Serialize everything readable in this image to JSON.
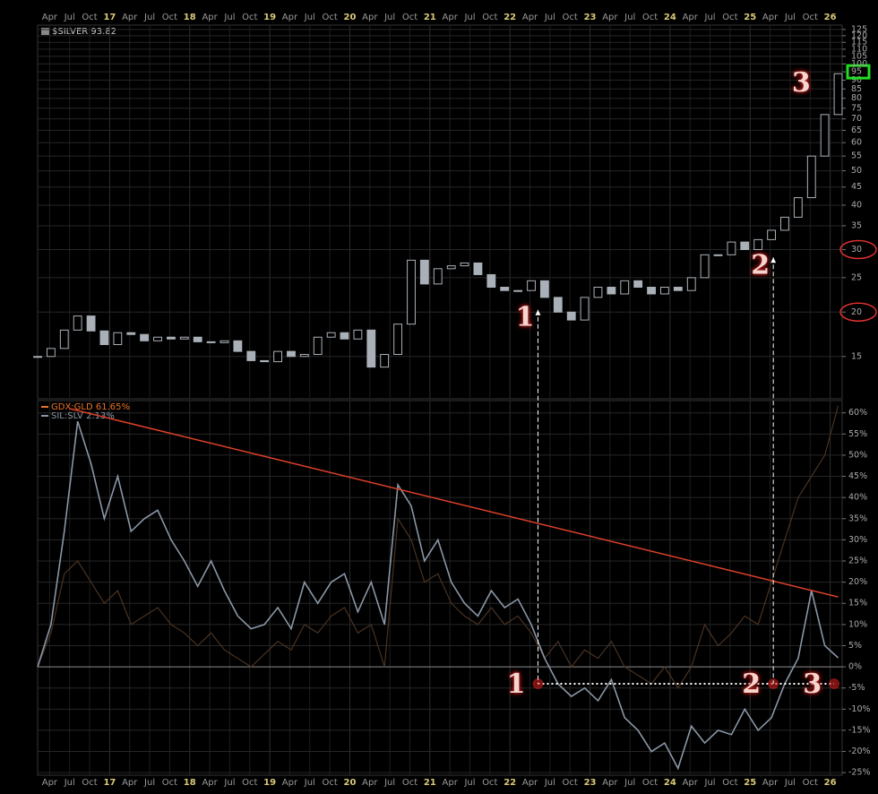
{
  "chart_data": [
    {
      "type": "candlestick",
      "title": "$SILVER 93.82",
      "color": "#a9b0b8",
      "log_scale": true,
      "grid": true,
      "x": [
        2016.1,
        2016.267,
        2016.433,
        2016.6,
        2016.767,
        2016.933,
        2017.1,
        2017.267,
        2017.433,
        2017.6,
        2017.767,
        2017.933,
        2018.1,
        2018.267,
        2018.433,
        2018.6,
        2018.767,
        2018.933,
        2019.1,
        2019.267,
        2019.433,
        2019.6,
        2019.767,
        2019.933,
        2020.1,
        2020.267,
        2020.433,
        2020.6,
        2020.767,
        2020.933,
        2021.1,
        2021.267,
        2021.433,
        2021.6,
        2021.767,
        2021.933,
        2022.1,
        2022.267,
        2022.433,
        2022.6,
        2022.767,
        2022.933,
        2023.1,
        2023.267,
        2023.433,
        2023.6,
        2023.767,
        2023.933,
        2024.1,
        2024.267,
        2024.433,
        2024.6,
        2024.767,
        2024.933,
        2025.1,
        2025.267,
        2025.433,
        2025.6,
        2025.767,
        2025.933,
        2026.1
      ],
      "values": [
        15.0,
        15.8,
        17.8,
        19.5,
        17.7,
        16.2,
        17.5,
        17.3,
        16.6,
        17.0,
        16.8,
        17.0,
        16.5,
        16.4,
        16.6,
        15.5,
        14.6,
        14.5,
        15.5,
        15.0,
        15.2,
        17.0,
        17.5,
        16.8,
        17.8,
        14.0,
        15.2,
        18.5,
        28.0,
        24.0,
        26.5,
        27.0,
        27.5,
        25.5,
        23.5,
        23.0,
        23.0,
        24.5,
        22.0,
        20.0,
        19.0,
        22.0,
        23.5,
        22.5,
        24.5,
        23.5,
        22.5,
        23.5,
        23.0,
        25.0,
        29.0,
        29.0,
        31.5,
        30.0,
        32.0,
        34.0,
        37.0,
        42.0,
        55.0,
        72.0,
        93.82
      ],
      "xlim": [
        2016.1,
        2026.15
      ],
      "xticks": [
        {
          "value": 2016.25,
          "label": "Apr"
        },
        {
          "value": 2016.5,
          "label": "Jul"
        },
        {
          "value": 2016.75,
          "label": "Oct"
        },
        {
          "value": 2017,
          "label": "17"
        },
        {
          "value": 2017.25,
          "label": "Apr"
        },
        {
          "value": 2017.5,
          "label": "Jul"
        },
        {
          "value": 2017.75,
          "label": "Oct"
        },
        {
          "value": 2018,
          "label": "18"
        },
        {
          "value": 2018.25,
          "label": "Apr"
        },
        {
          "value": 2018.5,
          "label": "Jul"
        },
        {
          "value": 2018.75,
          "label": "Oct"
        },
        {
          "value": 2019,
          "label": "19"
        },
        {
          "value": 2019.25,
          "label": "Apr"
        },
        {
          "value": 2019.5,
          "label": "Jul"
        },
        {
          "value": 2019.75,
          "label": "Oct"
        },
        {
          "value": 2020,
          "label": "20"
        },
        {
          "value": 2020.25,
          "label": "Apr"
        },
        {
          "value": 2020.5,
          "label": "Jul"
        },
        {
          "value": 2020.75,
          "label": "Oct"
        },
        {
          "value": 2021,
          "label": "21"
        },
        {
          "value": 2021.25,
          "label": "Apr"
        },
        {
          "value": 2021.5,
          "label": "Jul"
        },
        {
          "value": 2021.75,
          "label": "Oct"
        },
        {
          "value": 2022,
          "label": "22"
        },
        {
          "value": 2022.25,
          "label": "Apr"
        },
        {
          "value": 2022.5,
          "label": "Jul"
        },
        {
          "value": 2022.75,
          "label": "Oct"
        },
        {
          "value": 2023,
          "label": "23"
        },
        {
          "value": 2023.25,
          "label": "Apr"
        },
        {
          "value": 2023.5,
          "label": "Jul"
        },
        {
          "value": 2023.75,
          "label": "Oct"
        },
        {
          "value": 2024,
          "label": "24"
        },
        {
          "value": 2024.25,
          "label": "Apr"
        },
        {
          "value": 2024.5,
          "label": "Jul"
        },
        {
          "value": 2024.75,
          "label": "Oct"
        },
        {
          "value": 2025,
          "label": "25"
        },
        {
          "value": 2025.25,
          "label": "Apr"
        },
        {
          "value": 2025.5,
          "label": "Jul"
        },
        {
          "value": 2025.75,
          "label": "Oct"
        },
        {
          "value": 2026,
          "label": "26"
        }
      ],
      "ylim": [
        11.4,
        128.6
      ],
      "yticks": [
        15,
        20,
        25,
        30,
        35,
        40,
        45,
        50,
        55,
        60,
        65,
        70,
        75,
        80,
        85,
        90,
        95,
        100,
        105,
        110,
        115,
        120,
        125
      ],
      "highlight_tick": 95,
      "highlight_color": "#22dd22",
      "circled_ticks": [
        30,
        20
      ],
      "circle_color": "#e03030",
      "annotations": [
        {
          "label": "1",
          "x": 2022.35,
          "y": 20.3
        },
        {
          "label": "2",
          "x": 2025.29,
          "y": 28.5
        },
        {
          "label": "3",
          "x": 2025.8,
          "y": 93
        }
      ]
    },
    {
      "type": "line",
      "grid": true,
      "x": [
        2016.1,
        2016.267,
        2016.433,
        2016.6,
        2016.767,
        2016.933,
        2017.1,
        2017.267,
        2017.433,
        2017.6,
        2017.767,
        2017.933,
        2018.1,
        2018.267,
        2018.433,
        2018.6,
        2018.767,
        2018.933,
        2019.1,
        2019.267,
        2019.433,
        2019.6,
        2019.767,
        2019.933,
        2020.1,
        2020.267,
        2020.433,
        2020.6,
        2020.767,
        2020.933,
        2021.1,
        2021.267,
        2021.433,
        2021.6,
        2021.767,
        2021.933,
        2022.1,
        2022.267,
        2022.433,
        2022.6,
        2022.767,
        2022.933,
        2023.1,
        2023.267,
        2023.433,
        2023.6,
        2023.767,
        2023.933,
        2024.1,
        2024.267,
        2024.433,
        2024.6,
        2024.767,
        2024.933,
        2025.1,
        2025.267,
        2025.433,
        2025.6,
        2025.767,
        2025.933,
        2026.1
      ],
      "series": [
        {
          "name": "GDX:GLD 61.65%",
          "color": "#e8732a",
          "line_color": "#4a3222",
          "values": [
            0,
            8,
            22,
            25,
            20,
            15,
            18,
            10,
            12,
            14,
            10,
            8,
            5,
            8,
            4,
            2,
            0,
            3,
            6,
            4,
            10,
            8,
            12,
            14,
            8,
            10,
            0,
            35,
            30,
            20,
            22,
            15,
            12,
            10,
            14,
            10,
            12,
            8,
            2,
            6,
            0,
            4,
            2,
            6,
            0,
            -2,
            -4,
            0,
            -5,
            0,
            10,
            5,
            8,
            12,
            10,
            20,
            30,
            40,
            45,
            50,
            61.65
          ]
        },
        {
          "name": "SIL:SLV 2.13%",
          "color": "#8a97a6",
          "line_color": "#8a97a6",
          "values": [
            0,
            10,
            32,
            58,
            48,
            35,
            45,
            32,
            35,
            37,
            30,
            25,
            19,
            25,
            18,
            12,
            9,
            10,
            14,
            9,
            20,
            15,
            20,
            22,
            13,
            20,
            10,
            43,
            38,
            25,
            30,
            20,
            15,
            12,
            18,
            14,
            16,
            10,
            2,
            -4,
            -7,
            -5,
            -8,
            -3,
            -12,
            -15,
            -20,
            -18,
            -24,
            -14,
            -18,
            -15,
            -16,
            -10,
            -15,
            -12,
            -4,
            2,
            18,
            5,
            2.13
          ]
        }
      ],
      "xlim": [
        2016.1,
        2026.15
      ],
      "ylim": [
        -25.6,
        62.9
      ],
      "yticks": [
        {
          "value": -25,
          "label": "-25%"
        },
        {
          "value": -20,
          "label": "-20%"
        },
        {
          "value": -15,
          "label": "-15%"
        },
        {
          "value": -10,
          "label": "-10%"
        },
        {
          "value": -5,
          "label": "-5%"
        },
        {
          "value": 0,
          "label": "0%"
        },
        {
          "value": 5,
          "label": "5%"
        },
        {
          "value": 10,
          "label": "10%"
        },
        {
          "value": 15,
          "label": "15%"
        },
        {
          "value": 20,
          "label": "20%"
        },
        {
          "value": 25,
          "label": "25%"
        },
        {
          "value": 30,
          "label": "30%"
        },
        {
          "value": 35,
          "label": "35%"
        },
        {
          "value": 40,
          "label": "40%"
        },
        {
          "value": 45,
          "label": "45%"
        },
        {
          "value": 50,
          "label": "50%"
        },
        {
          "value": 55,
          "label": "55%"
        },
        {
          "value": 60,
          "label": "60%"
        }
      ],
      "baseline": 0,
      "trendline": {
        "color": "#e0402a",
        "x": [
          2016.5,
          2026.1
        ],
        "y": [
          61,
          16.5
        ]
      },
      "level": -4,
      "annotations": [
        {
          "label": "1",
          "x": 2022.35
        },
        {
          "label": "2",
          "x": 2025.29
        },
        {
          "label": "3",
          "x": 2026.05
        }
      ]
    }
  ]
}
